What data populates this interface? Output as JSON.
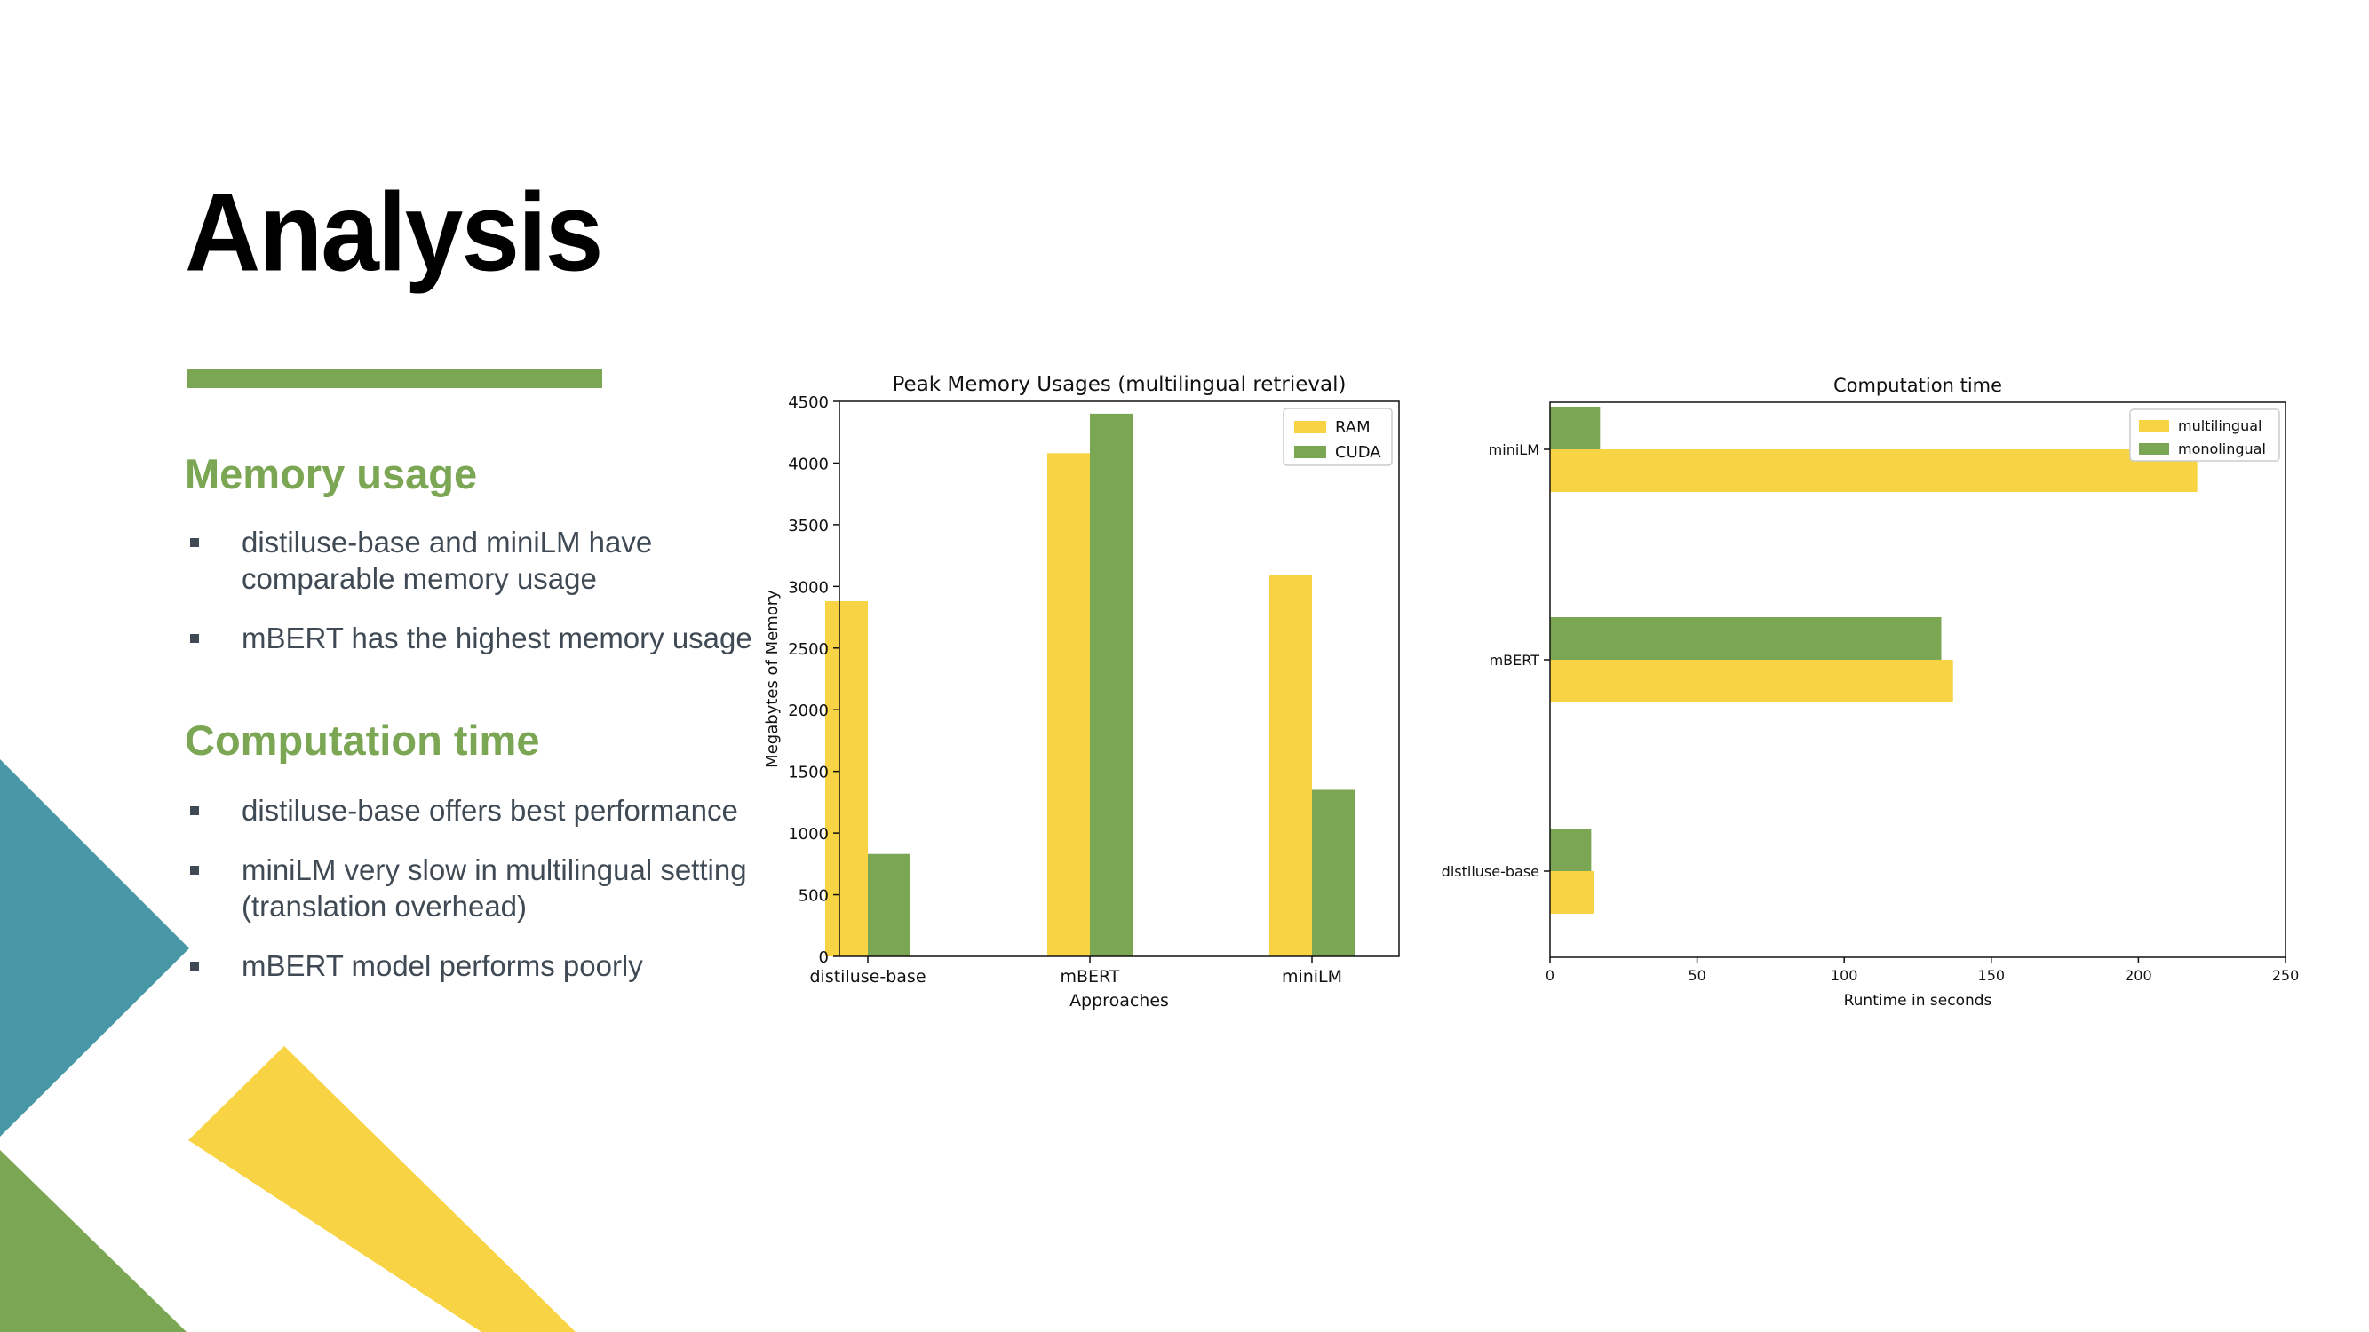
{
  "slide": {
    "title": "Analysis",
    "sections": [
      {
        "heading": "Memory usage",
        "bullets": [
          "distiluse-base and miniLM have comparable memory usage",
          "mBERT has the highest memory usage"
        ]
      },
      {
        "heading": "Computation time",
        "bullets": [
          "distiluse-base offers best performance",
          "miniLM very slow in multilingual setting (translation overhead)",
          "mBERT model performs poorly"
        ]
      }
    ]
  },
  "colors": {
    "yellow": "#f8d444",
    "green": "#7ba653",
    "teal": "#4797a6",
    "text": "#404a54"
  },
  "chart_data": [
    {
      "type": "bar",
      "title": "Peak Memory Usages (multilingual retrieval)",
      "xlabel": "Approaches",
      "ylabel": "Megabytes of Memory",
      "categories": [
        "distiluse-base",
        "mBERT",
        "miniLM"
      ],
      "series": [
        {
          "name": "RAM",
          "color": "#f8d444",
          "values": [
            2880,
            4080,
            3090
          ]
        },
        {
          "name": "CUDA",
          "color": "#7ba653",
          "values": [
            830,
            4400,
            1350
          ]
        }
      ],
      "ylim": [
        0,
        4500
      ],
      "yticks": [
        0,
        500,
        1000,
        1500,
        2000,
        2500,
        3000,
        3500,
        4000,
        4500
      ],
      "legend": "top-right",
      "grid": false
    },
    {
      "type": "bar",
      "orientation": "horizontal",
      "title": "Computation time",
      "xlabel": "Runtime in seconds",
      "ylabel": "",
      "categories": [
        "distiluse-base",
        "mBERT",
        "miniLM"
      ],
      "series": [
        {
          "name": "multilingual",
          "color": "#f8d444",
          "values": [
            15,
            137,
            220
          ]
        },
        {
          "name": "monolingual",
          "color": "#7ba653",
          "values": [
            14,
            133,
            17
          ]
        }
      ],
      "xlim": [
        0,
        250
      ],
      "xticks": [
        0,
        50,
        100,
        150,
        200,
        250
      ],
      "legend": "top-right",
      "grid": false
    }
  ]
}
